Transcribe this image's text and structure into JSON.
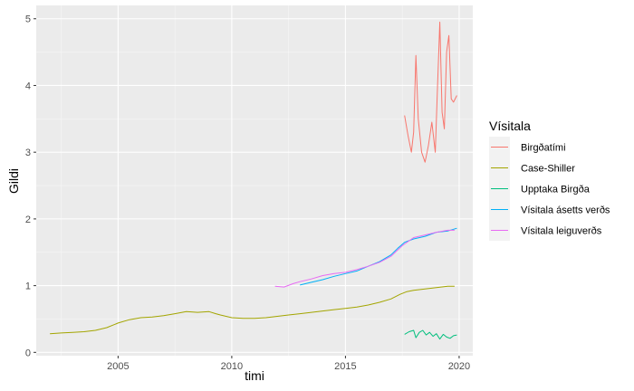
{
  "chart_data": {
    "type": "line",
    "xlabel": "timi",
    "ylabel": "Gildi",
    "xlim": [
      2001.4,
      2020.6
    ],
    "ylim": [
      -0.05,
      5.2
    ],
    "x_ticks": [
      2005,
      2010,
      2015,
      2020
    ],
    "y_ticks": [
      0,
      1,
      2,
      3,
      4,
      5
    ],
    "grid": true,
    "legend_position": "right",
    "legend_title": "Vísitala",
    "series": [
      {
        "name": "Birgðatími",
        "color": "#F8766D",
        "x": [
          2017.6,
          2017.75,
          2017.9,
          2018.0,
          2018.1,
          2018.2,
          2018.35,
          2018.5,
          2018.65,
          2018.8,
          2018.95,
          2019.05,
          2019.15,
          2019.25,
          2019.35,
          2019.45,
          2019.55,
          2019.65,
          2019.75,
          2019.9
        ],
        "values": [
          3.55,
          3.25,
          3.0,
          3.3,
          4.45,
          3.5,
          3.0,
          2.85,
          3.1,
          3.45,
          3.0,
          4.0,
          4.95,
          3.6,
          3.35,
          4.5,
          4.75,
          3.8,
          3.75,
          3.85
        ]
      },
      {
        "name": "Case-Shiller",
        "color": "#A3A500",
        "x": [
          2002.0,
          2002.5,
          2003.0,
          2003.5,
          2004.0,
          2004.5,
          2005.0,
          2005.5,
          2006.0,
          2006.5,
          2007.0,
          2007.5,
          2008.0,
          2008.5,
          2009.0,
          2009.3,
          2009.5,
          2010.0,
          2010.5,
          2011.0,
          2011.5,
          2012.0,
          2012.5,
          2013.0,
          2013.5,
          2014.0,
          2014.5,
          2015.0,
          2015.5,
          2016.0,
          2016.5,
          2017.0,
          2017.4,
          2017.7,
          2018.0,
          2018.5,
          2019.0,
          2019.5,
          2019.8
        ],
        "values": [
          0.28,
          0.29,
          0.3,
          0.31,
          0.33,
          0.37,
          0.44,
          0.49,
          0.52,
          0.53,
          0.55,
          0.58,
          0.61,
          0.6,
          0.61,
          0.58,
          0.56,
          0.52,
          0.51,
          0.51,
          0.52,
          0.54,
          0.56,
          0.58,
          0.6,
          0.62,
          0.64,
          0.66,
          0.68,
          0.71,
          0.75,
          0.8,
          0.87,
          0.91,
          0.93,
          0.95,
          0.97,
          0.99,
          0.99
        ]
      },
      {
        "name": "Upptaka Birgða",
        "color": "#00BF7D",
        "x": [
          2017.6,
          2017.8,
          2018.0,
          2018.1,
          2018.25,
          2018.4,
          2018.55,
          2018.7,
          2018.85,
          2019.0,
          2019.15,
          2019.3,
          2019.45,
          2019.6,
          2019.75,
          2019.9
        ],
        "values": [
          0.27,
          0.31,
          0.33,
          0.22,
          0.3,
          0.33,
          0.26,
          0.3,
          0.24,
          0.28,
          0.2,
          0.27,
          0.23,
          0.21,
          0.25,
          0.26
        ]
      },
      {
        "name": "Vísitala ásetts verðs",
        "color": "#00B0F6",
        "x": [
          2013.0,
          2013.5,
          2014.0,
          2014.5,
          2015.0,
          2015.5,
          2016.0,
          2016.5,
          2017.0,
          2017.3,
          2017.6,
          2018.0,
          2018.5,
          2019.0,
          2019.5,
          2019.9
        ],
        "values": [
          1.01,
          1.05,
          1.09,
          1.14,
          1.18,
          1.22,
          1.29,
          1.36,
          1.46,
          1.56,
          1.65,
          1.7,
          1.74,
          1.8,
          1.82,
          1.86
        ]
      },
      {
        "name": "Vísitala leiguverðs",
        "color": "#E76BF3",
        "x": [
          2011.9,
          2012.3,
          2012.7,
          2013.0,
          2013.5,
          2014.0,
          2014.5,
          2015.0,
          2015.5,
          2016.0,
          2016.5,
          2017.0,
          2017.5,
          2018.0,
          2018.5,
          2019.0,
          2019.5,
          2019.8
        ],
        "values": [
          0.99,
          0.98,
          1.03,
          1.06,
          1.1,
          1.15,
          1.18,
          1.2,
          1.24,
          1.29,
          1.35,
          1.44,
          1.6,
          1.72,
          1.76,
          1.8,
          1.83,
          1.83
        ]
      }
    ]
  }
}
